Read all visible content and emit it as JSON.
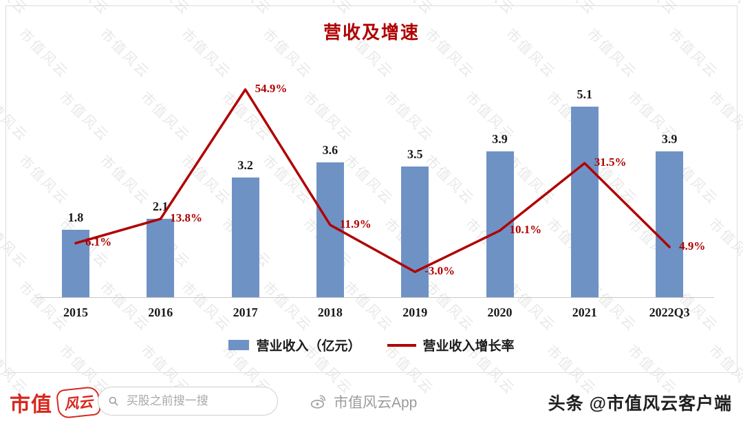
{
  "watermark": "市值风云",
  "chart_data": {
    "type": "bar",
    "subtype": "bar+line-combo",
    "title": "营收及增速",
    "categories": [
      "2015",
      "2016",
      "2017",
      "2018",
      "2019",
      "2020",
      "2021",
      "2022Q3"
    ],
    "series": [
      {
        "name": "营业收入（亿元）",
        "chart_type": "bar",
        "values": [
          1.8,
          2.1,
          3.2,
          3.6,
          3.5,
          3.9,
          5.1,
          3.9
        ],
        "labels": [
          "1.8",
          "2.1",
          "3.2",
          "3.6",
          "3.5",
          "3.9",
          "5.1",
          "3.9"
        ],
        "color": "#6f92c5"
      },
      {
        "name": "营业收入增长率",
        "chart_type": "line",
        "unit": "%",
        "values": [
          6.1,
          13.8,
          54.9,
          11.9,
          -3.0,
          10.1,
          31.5,
          4.9
        ],
        "labels": [
          "6.1%",
          "13.8%",
          "54.9%",
          "11.9%",
          "-3.0%",
          "10.1%",
          "31.5%",
          "4.9%"
        ],
        "color": "#b00000"
      }
    ],
    "legend_position": "bottom-center",
    "grid": false,
    "y_axis_visible": false,
    "title_color": "#b00000",
    "label_color": "#1a1a1a"
  },
  "footer": {
    "brand_text": "市值",
    "brand_seal": "风云",
    "search_placeholder": "买股之前搜一搜",
    "center_app": "市值风云App",
    "right_text": "头条 @市值风云客户端"
  }
}
